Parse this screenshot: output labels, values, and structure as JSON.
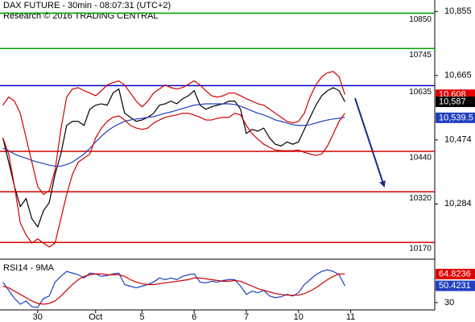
{
  "chart_data": [
    {
      "type": "line",
      "title": "DAX FUTURE - 30min - 08:07:31 (UTC+2)",
      "subtitle": "Research © 2016 TRADING CENTRAL",
      "x": [
        0,
        1,
        2,
        3,
        4,
        5,
        6,
        7,
        8,
        9,
        10,
        11,
        12,
        13,
        14,
        15,
        16,
        17,
        18,
        19,
        20,
        21,
        22,
        23,
        24,
        25,
        26,
        27,
        28,
        29,
        30,
        31,
        32,
        33,
        34,
        35,
        36,
        37,
        38,
        39,
        40,
        41,
        42,
        43,
        44,
        45,
        46,
        47,
        48,
        49,
        50,
        51,
        52,
        53,
        54,
        55,
        56,
        57,
        58,
        59
      ],
      "xlim": [
        -0.5,
        74.5
      ],
      "ylim": [
        10120,
        10889
      ],
      "yticks": [
        {
          "value": 10855,
          "label": "10,855"
        },
        {
          "value": 10665,
          "label": "10,665"
        },
        {
          "value": 10474,
          "label": "10,474"
        },
        {
          "value": 10284,
          "label": "10,284"
        }
      ],
      "series": [
        {
          "color": "#000000",
          "values": [
            10480,
            10408,
            10336,
            10276,
            10300,
            10240,
            10216,
            10264,
            10288,
            10372,
            10432,
            10517,
            10529,
            10529,
            10517,
            10565,
            10577,
            10581,
            10577,
            10613,
            10625,
            10553,
            10541,
            10529,
            10533,
            10541,
            10553,
            10577,
            10581,
            10589,
            10581,
            10596,
            10605,
            10620,
            10577,
            10565,
            10572,
            10577,
            10581,
            10589,
            10589,
            10565,
            10493,
            10505,
            10500,
            10509,
            10480,
            10461,
            10456,
            10468,
            10461,
            10468,
            10505,
            10541,
            10577,
            10605,
            10620,
            10629,
            10620,
            10587
          ]
        },
        {
          "color": "#2040c0",
          "values": [
            10449,
            10442,
            10432,
            10425,
            10420,
            10413,
            10408,
            10404,
            10399,
            10396,
            10396,
            10401,
            10408,
            10420,
            10432,
            10449,
            10468,
            10485,
            10500,
            10512,
            10521,
            10529,
            10533,
            10536,
            10538,
            10541,
            10543,
            10548,
            10553,
            10557,
            10562,
            10567,
            10572,
            10577,
            10579,
            10581,
            10581,
            10581,
            10581,
            10581,
            10579,
            10574,
            10567,
            10560,
            10553,
            10548,
            10541,
            10533,
            10529,
            10524,
            10519,
            10517,
            10517,
            10519,
            10524,
            10529,
            10533,
            10536,
            10538,
            10541
          ]
        },
        {
          "color": "#d00000",
          "values": [
            10577,
            10601,
            10589,
            10553,
            10480,
            10408,
            10336,
            10312,
            10324,
            10384,
            10505,
            10601,
            10625,
            10629,
            10620,
            10613,
            10605,
            10620,
            10637,
            10644,
            10649,
            10637,
            10613,
            10589,
            10572,
            10589,
            10613,
            10625,
            10637,
            10629,
            10625,
            10629,
            10639,
            10649,
            10637,
            10620,
            10605,
            10601,
            10605,
            10613,
            10613,
            10605,
            10596,
            10589,
            10581,
            10577,
            10565,
            10553,
            10541,
            10529,
            10524,
            10529,
            10553,
            10601,
            10637,
            10661,
            10673,
            10677,
            10661,
            10608
          ]
        },
        {
          "color": "#d00000",
          "values": [
            10480,
            10432,
            10336,
            10228,
            10192,
            10168,
            10180,
            10168,
            10156,
            10168,
            10240,
            10312,
            10372,
            10408,
            10420,
            10432,
            10480,
            10509,
            10529,
            10541,
            10545,
            10533,
            10517,
            10509,
            10505,
            10509,
            10524,
            10533,
            10541,
            10545,
            10548,
            10553,
            10553,
            10548,
            10541,
            10533,
            10533,
            10538,
            10541,
            10541,
            10553,
            10548,
            10517,
            10492,
            10476,
            10461,
            10452,
            10444,
            10442,
            10442,
            10442,
            10444,
            10437,
            10432,
            10428,
            10432,
            10456,
            10492,
            10529,
            10553
          ]
        }
      ],
      "levels": [
        {
          "value": 10850,
          "color": "#00a000"
        },
        {
          "value": 10745,
          "color": "#00a000"
        },
        {
          "value": 10635,
          "color": "#0000c8"
        },
        {
          "value": 10440,
          "color": "#d00000"
        },
        {
          "value": 10320,
          "color": "#d00000"
        },
        {
          "value": 10170,
          "color": "#d00000"
        }
      ],
      "tags": [
        {
          "value": 10608,
          "label": "10,608",
          "color": "#e00000"
        },
        {
          "value": 10587,
          "label": "10,587",
          "color": "#000000"
        },
        {
          "value": 10539.5,
          "label": "10,539.5",
          "color": "#2040c0"
        }
      ]
    },
    {
      "type": "line",
      "title": "RSI14 - 9MA",
      "x": [
        0,
        1,
        2,
        3,
        4,
        5,
        6,
        7,
        8,
        9,
        10,
        11,
        12,
        13,
        14,
        15,
        16,
        17,
        18,
        19,
        20,
        21,
        22,
        23,
        24,
        25,
        26,
        27,
        28,
        29,
        30,
        31,
        32,
        33,
        34,
        35,
        36,
        37,
        38,
        39,
        40,
        41,
        42,
        43,
        44,
        45,
        46,
        47,
        48,
        49,
        50,
        51,
        52,
        53,
        54,
        55,
        56,
        57,
        58,
        59
      ],
      "xlim": [
        -0.5,
        74.5
      ],
      "xticks": [
        {
          "value": 6,
          "label": "30"
        },
        {
          "value": 16,
          "label": "Oct"
        },
        {
          "value": 24,
          "label": "5"
        },
        {
          "value": 33,
          "label": "6"
        },
        {
          "value": 42,
          "label": "7"
        },
        {
          "value": 51,
          "label": "10"
        },
        {
          "value": 60,
          "label": "11"
        }
      ],
      "ylim": [
        21,
        80
      ],
      "yticks": [
        30
      ],
      "series": [
        {
          "color": "#2040c0",
          "values": [
            55,
            45,
            35,
            28,
            32,
            25,
            24,
            35,
            38,
            55,
            62,
            68,
            66,
            64,
            60,
            66,
            65,
            62,
            63,
            65,
            66,
            52,
            50,
            48,
            50,
            52,
            55,
            60,
            58,
            60,
            58,
            62,
            64,
            65,
            55,
            54,
            56,
            55,
            57,
            58,
            58,
            50,
            40,
            44,
            42,
            45,
            38,
            36,
            37,
            40,
            38,
            42,
            52,
            58,
            64,
            68,
            70,
            68,
            64,
            50.4231
          ]
        },
        {
          "color": "#d00000",
          "values": [
            50,
            48,
            44,
            40,
            36,
            32,
            29,
            28,
            29,
            32,
            38,
            45,
            52,
            58,
            62,
            64,
            65,
            65,
            64,
            64,
            64,
            62,
            58,
            55,
            53,
            52,
            52,
            53,
            54,
            55,
            56,
            57,
            58,
            60,
            60,
            59,
            58,
            57,
            56,
            56,
            57,
            56,
            53,
            50,
            47,
            45,
            43,
            41,
            40,
            39,
            39,
            39,
            41,
            44,
            48,
            53,
            58,
            62,
            65,
            64.8236
          ]
        }
      ],
      "tags": [
        {
          "value": 64.8236,
          "label": "64.8236",
          "color": "#e00000"
        },
        {
          "value": 50.4231,
          "label": "50.4231",
          "color": "#2040c0"
        }
      ]
    }
  ]
}
